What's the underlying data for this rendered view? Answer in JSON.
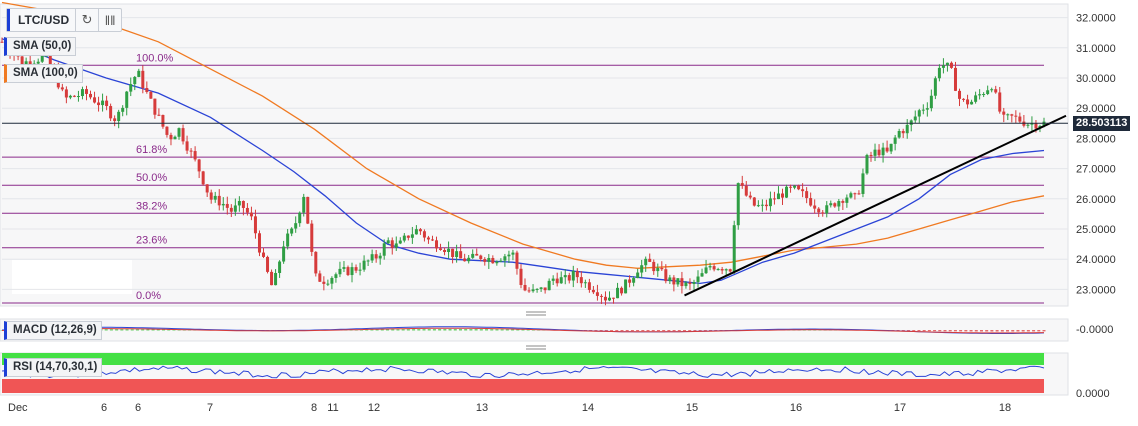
{
  "toolbar": {
    "symbol": "LTC/USD"
  },
  "icons": {
    "refresh": "refresh-icon",
    "bars": "bar-chart-icon"
  },
  "indicators": {
    "sma50": "SMA (50,0)",
    "sma100": "SMA (100,0)",
    "macd": "MACD (12,26,9)",
    "rsi": "RSI (14,70,30,1)"
  },
  "colors": {
    "up": "#2f9e44",
    "down": "#d63b3b",
    "sma50": "#2b44d6",
    "sma100": "#f07a22",
    "fib": "#8a2a8a",
    "trend": "#000000",
    "rsi_over": "#44e044",
    "rsi_under": "#f05555"
  },
  "chart_data": {
    "type": "candlestick",
    "price_axis": {
      "ticks": [
        32,
        31,
        30,
        29,
        28,
        27,
        26,
        25,
        24,
        23
      ],
      "ylim": [
        22.45,
        32.45
      ]
    },
    "current_price": "28.503113",
    "x_labels": [
      "Dec",
      "6",
      "6",
      "7",
      "8",
      "11",
      "12",
      "13",
      "14",
      "15",
      "16",
      "17",
      "18"
    ],
    "fibonacci": [
      {
        "label": "100.0%",
        "value": 30.42
      },
      {
        "label": "61.8%",
        "value": 27.38
      },
      {
        "label": "50.0%",
        "value": 26.45
      },
      {
        "label": "38.2%",
        "value": 25.52
      },
      {
        "label": "23.6%",
        "value": 24.38
      },
      {
        "label": "0.0%",
        "value": 22.55
      }
    ],
    "horizontal_line": 28.5,
    "trendline": {
      "from": [
        0.655,
        22.8
      ],
      "to": [
        1.0,
        28.75
      ]
    },
    "close_path": [
      [
        0,
        31.2
      ],
      [
        0.02,
        30.5
      ],
      [
        0.04,
        30.7
      ],
      [
        0.05,
        30.2
      ],
      [
        0.06,
        29.3
      ],
      [
        0.08,
        29.5
      ],
      [
        0.1,
        29.0
      ],
      [
        0.11,
        28.6
      ],
      [
        0.12,
        29.6
      ],
      [
        0.13,
        30.2
      ],
      [
        0.14,
        29.4
      ],
      [
        0.15,
        28.7
      ],
      [
        0.16,
        28.0
      ],
      [
        0.17,
        28.3
      ],
      [
        0.18,
        27.6
      ],
      [
        0.19,
        26.9
      ],
      [
        0.2,
        26.0
      ],
      [
        0.21,
        25.9
      ],
      [
        0.22,
        25.6
      ],
      [
        0.23,
        25.8
      ],
      [
        0.24,
        25.3
      ],
      [
        0.25,
        24.0
      ],
      [
        0.26,
        23.0
      ],
      [
        0.27,
        24.5
      ],
      [
        0.28,
        25.0
      ],
      [
        0.29,
        26.2
      ],
      [
        0.3,
        23.4
      ],
      [
        0.31,
        23.3
      ],
      [
        0.32,
        23.5
      ],
      [
        0.33,
        23.6
      ],
      [
        0.34,
        23.7
      ],
      [
        0.36,
        24.1
      ],
      [
        0.37,
        24.6
      ],
      [
        0.38,
        24.4
      ],
      [
        0.39,
        24.8
      ],
      [
        0.4,
        25.0
      ],
      [
        0.41,
        24.6
      ],
      [
        0.42,
        24.5
      ],
      [
        0.44,
        24.0
      ],
      [
        0.45,
        24.0
      ],
      [
        0.46,
        24.1
      ],
      [
        0.47,
        24.0
      ],
      [
        0.49,
        24.2
      ],
      [
        0.5,
        23.0
      ],
      [
        0.51,
        22.9
      ],
      [
        0.52,
        23.0
      ],
      [
        0.53,
        23.4
      ],
      [
        0.54,
        23.3
      ],
      [
        0.55,
        23.5
      ],
      [
        0.56,
        23.2
      ],
      [
        0.57,
        23.0
      ],
      [
        0.58,
        22.7
      ],
      [
        0.59,
        22.9
      ],
      [
        0.6,
        23.2
      ],
      [
        0.61,
        23.7
      ],
      [
        0.62,
        23.9
      ],
      [
        0.63,
        23.6
      ],
      [
        0.64,
        23.3
      ],
      [
        0.65,
        23.2
      ],
      [
        0.66,
        23.1
      ],
      [
        0.67,
        23.4
      ],
      [
        0.68,
        23.8
      ],
      [
        0.7,
        23.7
      ],
      [
        0.705,
        26.6
      ],
      [
        0.72,
        25.8
      ],
      [
        0.73,
        25.7
      ],
      [
        0.74,
        26.0
      ],
      [
        0.75,
        26.2
      ],
      [
        0.76,
        26.3
      ],
      [
        0.77,
        26.1
      ],
      [
        0.78,
        25.8
      ],
      [
        0.79,
        25.6
      ],
      [
        0.8,
        25.9
      ],
      [
        0.81,
        26.1
      ],
      [
        0.82,
        26.0
      ],
      [
        0.83,
        27.3
      ],
      [
        0.84,
        27.6
      ],
      [
        0.85,
        27.5
      ],
      [
        0.86,
        28.2
      ],
      [
        0.87,
        28.4
      ],
      [
        0.88,
        28.9
      ],
      [
        0.89,
        29.2
      ],
      [
        0.9,
        30.5
      ],
      [
        0.91,
        30.3
      ],
      [
        0.92,
        29.2
      ],
      [
        0.93,
        29.2
      ],
      [
        0.94,
        29.5
      ],
      [
        0.95,
        29.8
      ],
      [
        0.96,
        28.6
      ],
      [
        0.97,
        28.7
      ],
      [
        0.985,
        28.5
      ],
      [
        1.0,
        28.5
      ]
    ],
    "sma50_path": [
      [
        0,
        31.3
      ],
      [
        0.05,
        30.6
      ],
      [
        0.1,
        30.0
      ],
      [
        0.15,
        29.5
      ],
      [
        0.2,
        28.7
      ],
      [
        0.25,
        27.6
      ],
      [
        0.28,
        26.9
      ],
      [
        0.31,
        26.1
      ],
      [
        0.34,
        25.2
      ],
      [
        0.37,
        24.5
      ],
      [
        0.4,
        24.2
      ],
      [
        0.43,
        24.0
      ],
      [
        0.46,
        23.95
      ],
      [
        0.49,
        23.9
      ],
      [
        0.52,
        23.75
      ],
      [
        0.55,
        23.6
      ],
      [
        0.58,
        23.5
      ],
      [
        0.61,
        23.4
      ],
      [
        0.64,
        23.3
      ],
      [
        0.67,
        23.2
      ],
      [
        0.69,
        23.3
      ],
      [
        0.71,
        23.6
      ],
      [
        0.73,
        23.9
      ],
      [
        0.76,
        24.2
      ],
      [
        0.79,
        24.6
      ],
      [
        0.82,
        25.0
      ],
      [
        0.85,
        25.4
      ],
      [
        0.88,
        26.0
      ],
      [
        0.91,
        26.8
      ],
      [
        0.94,
        27.3
      ],
      [
        0.97,
        27.5
      ],
      [
        1.0,
        27.6
      ]
    ],
    "sma100_path": [
      [
        0,
        32.5
      ],
      [
        0.05,
        32.2
      ],
      [
        0.1,
        31.8
      ],
      [
        0.15,
        31.2
      ],
      [
        0.2,
        30.3
      ],
      [
        0.25,
        29.4
      ],
      [
        0.3,
        28.3
      ],
      [
        0.35,
        27.0
      ],
      [
        0.4,
        26.0
      ],
      [
        0.45,
        25.2
      ],
      [
        0.5,
        24.5
      ],
      [
        0.55,
        24.0
      ],
      [
        0.58,
        23.8
      ],
      [
        0.61,
        23.7
      ],
      [
        0.64,
        23.75
      ],
      [
        0.67,
        23.8
      ],
      [
        0.7,
        23.9
      ],
      [
        0.73,
        24.1
      ],
      [
        0.76,
        24.3
      ],
      [
        0.79,
        24.4
      ],
      [
        0.82,
        24.5
      ],
      [
        0.85,
        24.7
      ],
      [
        0.88,
        25.0
      ],
      [
        0.91,
        25.3
      ],
      [
        0.94,
        25.6
      ],
      [
        0.97,
        25.9
      ],
      [
        1.0,
        26.1
      ]
    ],
    "macd": {
      "label": "-0.0000"
    },
    "rsi": {
      "label": "0.0000"
    }
  }
}
